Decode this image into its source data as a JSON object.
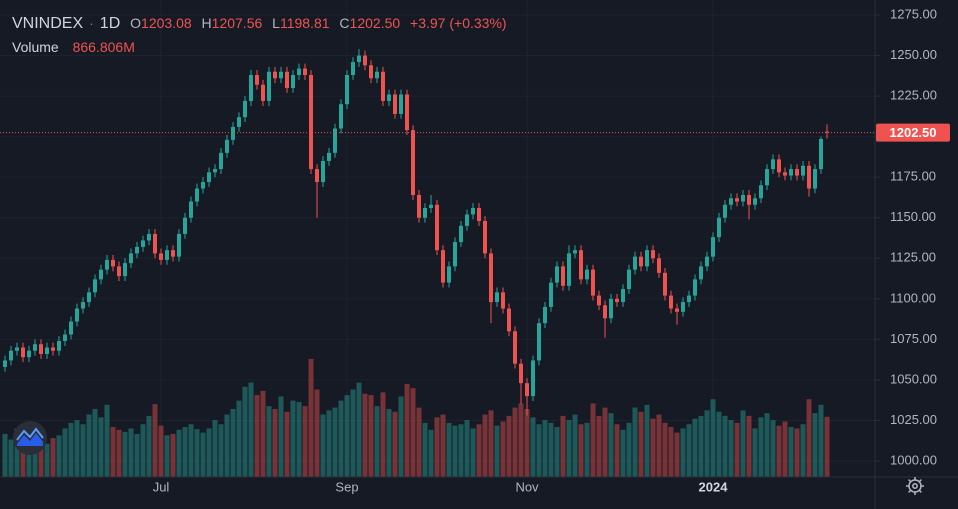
{
  "chart_data": {
    "type": "candlestick",
    "legend": {
      "symbol": "VNINDEX",
      "interval": "1D",
      "o": "O",
      "open": "1203.08",
      "h": "H",
      "high": "1207.56",
      "l": "L",
      "low": "1198.81",
      "c": "C",
      "close": "1202.50",
      "change": "+3.97 (+0.33%)",
      "volume_name": "Volume",
      "volume": "866.806M"
    },
    "up_color": "#26a69a",
    "down_color": "#ef5350",
    "ylim": [
      1000,
      1275
    ],
    "yticks": [
      {
        "value": 1000,
        "label": "1000.00"
      },
      {
        "value": 1025,
        "label": "1025.00"
      },
      {
        "value": 1050,
        "label": "1050.00"
      },
      {
        "value": 1075,
        "label": "1075.00"
      },
      {
        "value": 1100,
        "label": "1100.00"
      },
      {
        "value": 1125,
        "label": "1125.00"
      },
      {
        "value": 1150,
        "label": "1150.00"
      },
      {
        "value": 1175,
        "label": "1175.00"
      },
      {
        "value": 1200,
        "label": "1200.00"
      },
      {
        "value": 1225,
        "label": "1225.00"
      },
      {
        "value": 1250,
        "label": "1250.00"
      },
      {
        "value": 1275,
        "label": "1275.00"
      }
    ],
    "xticks": [
      {
        "value": 26,
        "label": "Jul"
      },
      {
        "value": 57,
        "label": "Sep"
      },
      {
        "value": 87,
        "label": "Nov"
      },
      {
        "value": 118,
        "label": "2024"
      }
    ],
    "grid": true,
    "candles": [
      [
        1058,
        1065,
        1055,
        1062
      ],
      [
        1062,
        1071,
        1059,
        1068
      ],
      [
        1068,
        1073,
        1065,
        1070
      ],
      [
        1070,
        1073,
        1061,
        1064
      ],
      [
        1064,
        1071,
        1061,
        1068
      ],
      [
        1068,
        1075,
        1065,
        1072
      ],
      [
        1072,
        1075,
        1063,
        1066
      ],
      [
        1066,
        1073,
        1063,
        1070
      ],
      [
        1070,
        1073,
        1065,
        1068
      ],
      [
        1068,
        1077,
        1065,
        1074
      ],
      [
        1074,
        1081,
        1071,
        1078
      ],
      [
        1078,
        1089,
        1075,
        1086
      ],
      [
        1086,
        1097,
        1083,
        1094
      ],
      [
        1094,
        1101,
        1091,
        1098
      ],
      [
        1098,
        1107,
        1095,
        1104
      ],
      [
        1104,
        1115,
        1101,
        1112
      ],
      [
        1112,
        1121,
        1109,
        1118
      ],
      [
        1118,
        1127,
        1115,
        1124
      ],
      [
        1124,
        1127,
        1117,
        1120
      ],
      [
        1120,
        1123,
        1111,
        1114
      ],
      [
        1114,
        1125,
        1111,
        1122
      ],
      [
        1122,
        1131,
        1119,
        1128
      ],
      [
        1128,
        1135,
        1125,
        1132
      ],
      [
        1132,
        1139,
        1129,
        1136
      ],
      [
        1136,
        1143,
        1133,
        1140
      ],
      [
        1140,
        1143,
        1125,
        1128
      ],
      [
        1128,
        1131,
        1121,
        1124
      ],
      [
        1124,
        1133,
        1121,
        1130
      ],
      [
        1130,
        1133,
        1123,
        1126
      ],
      [
        1126,
        1143,
        1123,
        1140
      ],
      [
        1140,
        1153,
        1137,
        1150
      ],
      [
        1150,
        1163,
        1147,
        1160
      ],
      [
        1160,
        1171,
        1157,
        1168
      ],
      [
        1168,
        1175,
        1165,
        1172
      ],
      [
        1172,
        1181,
        1169,
        1178
      ],
      [
        1178,
        1183,
        1175,
        1180
      ],
      [
        1180,
        1193,
        1177,
        1190
      ],
      [
        1190,
        1201,
        1187,
        1198
      ],
      [
        1198,
        1209,
        1195,
        1206
      ],
      [
        1206,
        1215,
        1203,
        1212
      ],
      [
        1212,
        1225,
        1209,
        1222
      ],
      [
        1222,
        1241,
        1219,
        1238
      ],
      [
        1238,
        1241,
        1229,
        1232
      ],
      [
        1232,
        1235,
        1219,
        1222
      ],
      [
        1222,
        1243,
        1219,
        1240
      ],
      [
        1240,
        1243,
        1233,
        1236
      ],
      [
        1236,
        1243,
        1233,
        1240
      ],
      [
        1240,
        1243,
        1227,
        1230
      ],
      [
        1230,
        1241,
        1227,
        1238
      ],
      [
        1238,
        1245,
        1235,
        1242
      ],
      [
        1242,
        1245,
        1235,
        1238
      ],
      [
        1238,
        1241,
        1177,
        1180
      ],
      [
        1180,
        1183,
        1150,
        1172
      ],
      [
        1172,
        1188,
        1169,
        1185
      ],
      [
        1185,
        1193,
        1182,
        1190
      ],
      [
        1190,
        1208,
        1187,
        1205
      ],
      [
        1205,
        1223,
        1202,
        1220
      ],
      [
        1220,
        1241,
        1217,
        1238
      ],
      [
        1238,
        1249,
        1235,
        1246
      ],
      [
        1246,
        1254,
        1243,
        1250
      ],
      [
        1250,
        1253,
        1241,
        1244
      ],
      [
        1244,
        1247,
        1233,
        1236
      ],
      [
        1236,
        1243,
        1233,
        1240
      ],
      [
        1240,
        1243,
        1219,
        1222
      ],
      [
        1222,
        1229,
        1219,
        1226
      ],
      [
        1226,
        1229,
        1211,
        1214
      ],
      [
        1214,
        1229,
        1211,
        1226
      ],
      [
        1226,
        1229,
        1201,
        1204
      ],
      [
        1204,
        1207,
        1161,
        1164
      ],
      [
        1164,
        1167,
        1147,
        1150
      ],
      [
        1150,
        1159,
        1147,
        1156
      ],
      [
        1156,
        1164,
        1153,
        1158
      ],
      [
        1158,
        1161,
        1127,
        1130
      ],
      [
        1130,
        1133,
        1107,
        1110
      ],
      [
        1110,
        1123,
        1107,
        1120
      ],
      [
        1120,
        1138,
        1117,
        1135
      ],
      [
        1135,
        1148,
        1132,
        1145
      ],
      [
        1145,
        1155,
        1142,
        1152
      ],
      [
        1152,
        1159,
        1149,
        1156
      ],
      [
        1156,
        1159,
        1145,
        1148
      ],
      [
        1148,
        1151,
        1125,
        1128
      ],
      [
        1128,
        1131,
        1085,
        1098
      ],
      [
        1098,
        1107,
        1095,
        1104
      ],
      [
        1104,
        1107,
        1091,
        1094
      ],
      [
        1094,
        1097,
        1077,
        1080
      ],
      [
        1080,
        1083,
        1057,
        1060
      ],
      [
        1060,
        1063,
        1035,
        1048
      ],
      [
        1048,
        1051,
        1028,
        1040
      ],
      [
        1040,
        1065,
        1037,
        1062
      ],
      [
        1062,
        1088,
        1059,
        1085
      ],
      [
        1085,
        1098,
        1082,
        1095
      ],
      [
        1095,
        1113,
        1092,
        1110
      ],
      [
        1110,
        1123,
        1107,
        1120
      ],
      [
        1120,
        1123,
        1105,
        1108
      ],
      [
        1108,
        1133,
        1105,
        1128
      ],
      [
        1128,
        1133,
        1125,
        1130
      ],
      [
        1130,
        1133,
        1109,
        1112
      ],
      [
        1112,
        1121,
        1109,
        1118
      ],
      [
        1118,
        1121,
        1099,
        1102
      ],
      [
        1102,
        1105,
        1093,
        1096
      ],
      [
        1096,
        1099,
        1076,
        1088
      ],
      [
        1088,
        1103,
        1085,
        1100
      ],
      [
        1100,
        1103,
        1095,
        1098
      ],
      [
        1098,
        1109,
        1095,
        1106
      ],
      [
        1106,
        1121,
        1103,
        1118
      ],
      [
        1118,
        1129,
        1115,
        1126
      ],
      [
        1126,
        1129,
        1117,
        1120
      ],
      [
        1120,
        1133,
        1117,
        1130
      ],
      [
        1130,
        1133,
        1122,
        1125
      ],
      [
        1125,
        1128,
        1113,
        1116
      ],
      [
        1116,
        1119,
        1099,
        1102
      ],
      [
        1102,
        1105,
        1091,
        1094
      ],
      [
        1094,
        1097,
        1084,
        1092
      ],
      [
        1092,
        1101,
        1089,
        1098
      ],
      [
        1098,
        1105,
        1095,
        1102
      ],
      [
        1102,
        1115,
        1099,
        1112
      ],
      [
        1112,
        1123,
        1109,
        1120
      ],
      [
        1120,
        1129,
        1117,
        1126
      ],
      [
        1126,
        1141,
        1123,
        1138
      ],
      [
        1138,
        1153,
        1135,
        1150
      ],
      [
        1150,
        1161,
        1147,
        1158
      ],
      [
        1158,
        1165,
        1155,
        1162
      ],
      [
        1162,
        1165,
        1157,
        1160
      ],
      [
        1160,
        1167,
        1157,
        1164
      ],
      [
        1164,
        1167,
        1149,
        1158
      ],
      [
        1158,
        1165,
        1155,
        1162
      ],
      [
        1162,
        1173,
        1159,
        1170
      ],
      [
        1170,
        1183,
        1167,
        1180
      ],
      [
        1180,
        1189,
        1177,
        1186
      ],
      [
        1186,
        1189,
        1175,
        1178
      ],
      [
        1178,
        1181,
        1173,
        1176
      ],
      [
        1176,
        1183,
        1173,
        1180
      ],
      [
        1180,
        1183,
        1173,
        1176
      ],
      [
        1176,
        1185,
        1173,
        1182
      ],
      [
        1182,
        1185,
        1163,
        1168
      ],
      [
        1168,
        1183,
        1165,
        1180
      ],
      [
        1180,
        1200,
        1177,
        1198.53
      ],
      [
        1203.08,
        1207.56,
        1198.81,
        1202.5
      ]
    ],
    "volumes": [
      620,
      540,
      700,
      580,
      650,
      520,
      610,
      480,
      560,
      600,
      700,
      780,
      820,
      760,
      900,
      980,
      860,
      1040,
      720,
      680,
      650,
      700,
      620,
      760,
      880,
      1050,
      740,
      600,
      620,
      680,
      720,
      760,
      690,
      640,
      700,
      820,
      760,
      900,
      980,
      1100,
      1300,
      1360,
      1180,
      1240,
      1020,
      980,
      1160,
      940,
      1100,
      1080,
      1020,
      1700,
      1260,
      900,
      960,
      1000,
      1100,
      1180,
      1260,
      1360,
      1200,
      1180,
      1020,
      1220,
      980,
      940,
      1160,
      1340,
      1280,
      1000,
      780,
      680,
      860,
      900,
      780,
      740,
      760,
      820,
      700,
      760,
      900,
      960,
      740,
      800,
      880,
      1000,
      1060,
      980,
      860,
      760,
      820,
      780,
      720,
      880,
      820,
      900,
      760,
      780,
      1060,
      880,
      1000,
      920,
      760,
      680,
      780,
      1000,
      940,
      1040,
      840,
      900,
      780,
      720,
      640,
      700,
      760,
      840,
      880,
      960,
      1120,
      940,
      880,
      820,
      780,
      960,
      880,
      700,
      860,
      920,
      820,
      740,
      800,
      720,
      700,
      760,
      1120,
      920,
      1040,
      866.806
    ]
  }
}
